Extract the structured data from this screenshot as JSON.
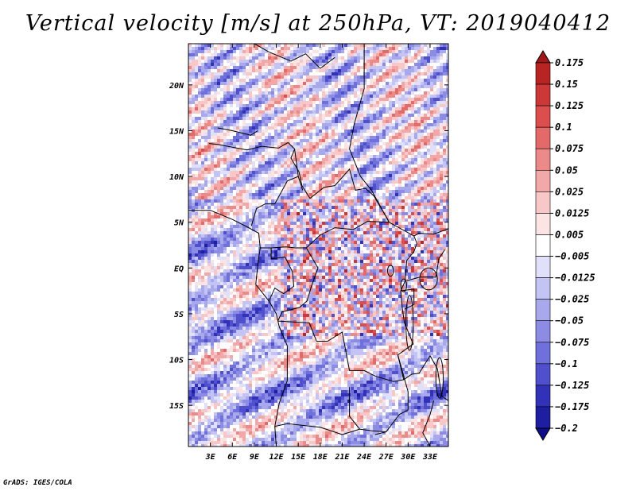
{
  "header": {
    "title": "Vertical velocity [m/s] at 250hPa, VT: 2019040412"
  },
  "footer": {
    "credit": "GrADS: IGES/COLA"
  },
  "chart_data": {
    "type": "heatmap",
    "title": "Vertical velocity [m/s] at 250hPa, VT: 2019040412",
    "variable": "Vertical velocity",
    "units": "m/s",
    "level": "250hPa",
    "valid_time": "2019040412",
    "x_axis": {
      "range": [
        0,
        35.5
      ],
      "ticks": [
        3,
        6,
        9,
        12,
        15,
        18,
        21,
        24,
        27,
        30,
        33
      ],
      "tick_labels": [
        "3E",
        "6E",
        "9E",
        "12E",
        "15E",
        "18E",
        "21E",
        "24E",
        "27E",
        "30E",
        "33E"
      ]
    },
    "y_axis": {
      "range": [
        -19.5,
        24.5
      ],
      "ticks": [
        20,
        15,
        10,
        5,
        0,
        -5,
        -10,
        -15
      ],
      "tick_labels": [
        "20N",
        "15N",
        "10N",
        "5N",
        "EQ",
        "5S",
        "10S",
        "15S"
      ]
    },
    "colorbar": {
      "levels": [
        0.175,
        0.15,
        0.125,
        0.1,
        0.075,
        0.05,
        0.025,
        0.0125,
        0.005,
        -0.005,
        -0.0125,
        -0.025,
        -0.05,
        -0.075,
        -0.1,
        -0.125,
        -0.175,
        -0.2
      ],
      "labels": [
        "0.175",
        "0.15",
        "0.125",
        "0.1",
        "0.075",
        "0.05",
        "0.025",
        "0.0125",
        "0.005",
        "−0.005",
        "−0.0125",
        "−0.025",
        "−0.05",
        "−0.075",
        "−0.1",
        "−0.125",
        "−0.175",
        "−0.2"
      ],
      "colors": [
        "#a01818",
        "#b82424",
        "#cc3838",
        "#dc4e4e",
        "#e46a6a",
        "#ec8a8a",
        "#f2a8a8",
        "#f8c8c8",
        "#fce4e4",
        "#ffffff",
        "#e0e0fa",
        "#c4c4f4",
        "#a8a8ec",
        "#8c8ce4",
        "#7070dc",
        "#5050cc",
        "#3232b8",
        "#1e1ea0",
        "#0e0e88"
      ]
    },
    "field_colors": {
      "positive": "#d83a3a",
      "negative": "#5a5ae0",
      "neutral": "#ffffff",
      "border": "#000000"
    }
  }
}
